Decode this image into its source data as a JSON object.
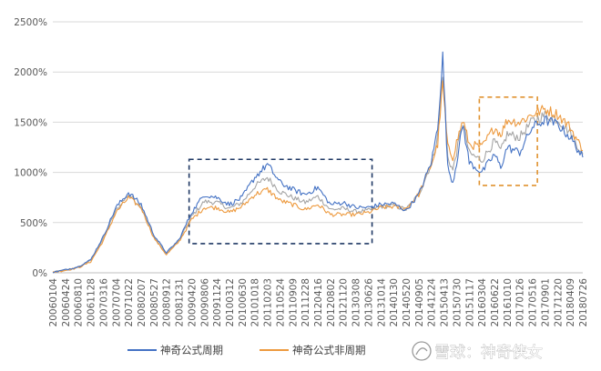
{
  "chart_data": {
    "type": "line",
    "title": "",
    "xlabel": "",
    "ylabel": "",
    "ylim": [
      0,
      25
    ],
    "y_ticks": [
      "0%",
      "500%",
      "1000%",
      "1500%",
      "2000%",
      "2500%"
    ],
    "y_tick_values": [
      0,
      5,
      10,
      15,
      20,
      25
    ],
    "x_tick_labels": [
      "20060104",
      "20060424",
      "20060810",
      "20061128",
      "20070316",
      "20070704",
      "20071022",
      "20080207",
      "20080527",
      "20080912",
      "20081231",
      "20090420",
      "20090806",
      "20091124",
      "20100312",
      "20100630",
      "20101018",
      "20110203",
      "20110524",
      "20110909",
      "20111228",
      "20120416",
      "20120802",
      "20121120",
      "20130308",
      "20130626",
      "20131014",
      "20140130",
      "20140520",
      "20140905",
      "20141224",
      "20150413",
      "20150730",
      "20151117",
      "20160304",
      "20160622",
      "20161010",
      "20170126",
      "20170516",
      "20170901",
      "20171220",
      "20180409",
      "20180726"
    ],
    "grid": true,
    "gridlines": "horizontal",
    "legend_position": "bottom",
    "series": [
      {
        "name": "神奇公式周期",
        "color": "#4472c4",
        "points": [
          [
            0,
            0.05
          ],
          [
            1,
            0.3
          ],
          [
            2,
            0.6
          ],
          [
            3,
            1.3
          ],
          [
            4,
            3.6
          ],
          [
            5,
            6.5
          ],
          [
            6,
            8.0
          ],
          [
            7,
            6.8
          ],
          [
            8,
            3.8
          ],
          [
            9,
            2.0
          ],
          [
            10,
            3.3
          ],
          [
            11,
            6.0
          ],
          [
            12,
            7.8
          ],
          [
            13,
            7.5
          ],
          [
            14,
            6.8
          ],
          [
            15,
            7.5
          ],
          [
            16,
            9.5
          ],
          [
            17,
            10.8
          ],
          [
            18,
            9.0
          ],
          [
            19,
            8.3
          ],
          [
            20,
            7.8
          ],
          [
            21,
            8.5
          ],
          [
            22,
            6.8
          ],
          [
            23,
            7.0
          ],
          [
            24,
            6.5
          ],
          [
            25,
            6.5
          ],
          [
            26,
            6.8
          ],
          [
            27,
            6.9
          ],
          [
            28,
            6.2
          ],
          [
            29,
            7.8
          ],
          [
            30,
            11.0
          ],
          [
            30.5,
            14.5
          ],
          [
            30.9,
            21.5
          ],
          [
            31.3,
            10.5
          ],
          [
            31.7,
            9.0
          ],
          [
            32,
            11.0
          ],
          [
            32.5,
            14.8
          ],
          [
            33,
            11.0
          ],
          [
            34,
            10.0
          ],
          [
            35,
            11.8
          ],
          [
            35.5,
            10.5
          ],
          [
            36,
            12.5
          ],
          [
            37,
            12.0
          ],
          [
            38,
            14.5
          ],
          [
            39,
            15.2
          ],
          [
            40,
            14.8
          ],
          [
            41,
            13.5
          ],
          [
            42,
            11.5
          ]
        ]
      },
      {
        "name": "神奇公式非周期",
        "color": "#ed9a3f",
        "points": [
          [
            0,
            0.05
          ],
          [
            1,
            0.25
          ],
          [
            2,
            0.5
          ],
          [
            3,
            1.1
          ],
          [
            4,
            3.2
          ],
          [
            5,
            6.0
          ],
          [
            6,
            7.5
          ],
          [
            7,
            6.5
          ],
          [
            8,
            3.5
          ],
          [
            9,
            1.8
          ],
          [
            10,
            3.1
          ],
          [
            11,
            5.3
          ],
          [
            12,
            6.5
          ],
          [
            13,
            6.5
          ],
          [
            14,
            6.0
          ],
          [
            15,
            6.6
          ],
          [
            16,
            7.8
          ],
          [
            17,
            8.3
          ],
          [
            18,
            7.2
          ],
          [
            19,
            6.8
          ],
          [
            20,
            6.3
          ],
          [
            21,
            6.8
          ],
          [
            22,
            5.8
          ],
          [
            23,
            5.8
          ],
          [
            24,
            5.8
          ],
          [
            25,
            6.0
          ],
          [
            26,
            6.5
          ],
          [
            27,
            6.6
          ],
          [
            28,
            6.4
          ],
          [
            29,
            7.8
          ],
          [
            30,
            10.8
          ],
          [
            30.5,
            12.8
          ],
          [
            30.9,
            18.8
          ],
          [
            31.3,
            12.5
          ],
          [
            31.7,
            11.5
          ],
          [
            32,
            13.0
          ],
          [
            32.5,
            15.2
          ],
          [
            33,
            12.8
          ],
          [
            34,
            12.5
          ],
          [
            35,
            14.5
          ],
          [
            35.5,
            13.8
          ],
          [
            36,
            15.2
          ],
          [
            37,
            15.0
          ],
          [
            38,
            15.8
          ],
          [
            39,
            16.3
          ],
          [
            40,
            15.8
          ],
          [
            41,
            14.5
          ],
          [
            42,
            12.2
          ]
        ]
      },
      {
        "name": "",
        "color": "#a5a5a5",
        "points": [
          [
            0,
            0.05
          ],
          [
            1,
            0.28
          ],
          [
            2,
            0.55
          ],
          [
            3,
            1.2
          ],
          [
            4,
            3.4
          ],
          [
            5,
            6.2
          ],
          [
            6,
            7.8
          ],
          [
            7,
            6.6
          ],
          [
            8,
            3.6
          ],
          [
            9,
            1.9
          ],
          [
            10,
            3.2
          ],
          [
            11,
            5.6
          ],
          [
            12,
            7.1
          ],
          [
            13,
            7.0
          ],
          [
            14,
            6.4
          ],
          [
            15,
            7.0
          ],
          [
            16,
            8.6
          ],
          [
            17,
            9.5
          ],
          [
            18,
            8.1
          ],
          [
            19,
            7.5
          ],
          [
            20,
            7.0
          ],
          [
            21,
            7.6
          ],
          [
            22,
            6.3
          ],
          [
            23,
            6.4
          ],
          [
            24,
            6.1
          ],
          [
            25,
            6.2
          ],
          [
            26,
            6.6
          ],
          [
            27,
            6.7
          ],
          [
            28,
            6.3
          ],
          [
            29,
            7.8
          ],
          [
            30,
            10.9
          ],
          [
            30.5,
            13.6
          ],
          [
            30.9,
            20.0
          ],
          [
            31.3,
            11.5
          ],
          [
            31.7,
            10.2
          ],
          [
            32,
            12.0
          ],
          [
            32.5,
            15.0
          ],
          [
            33,
            11.9
          ],
          [
            34,
            11.2
          ],
          [
            35,
            13.1
          ],
          [
            35.5,
            12.1
          ],
          [
            36,
            13.8
          ],
          [
            37,
            13.5
          ],
          [
            38,
            15.1
          ],
          [
            39,
            15.7
          ],
          [
            40,
            15.3
          ],
          [
            41,
            14.0
          ],
          [
            42,
            11.8
          ]
        ]
      }
    ],
    "highlight_boxes": [
      {
        "name": "dark-dashed-box",
        "color": "#1f3864",
        "x_range": [
          10.8,
          25.3
        ],
        "y_range": [
          2.9,
          11.3
        ]
      },
      {
        "name": "orange-dashed-box",
        "color": "#e0922f",
        "x_range": [
          33.8,
          38.4
        ],
        "y_range": [
          8.7,
          17.5
        ]
      }
    ]
  },
  "watermark": {
    "text": "雪球：神奇侠女",
    "icon": "snowball-logo-icon"
  }
}
